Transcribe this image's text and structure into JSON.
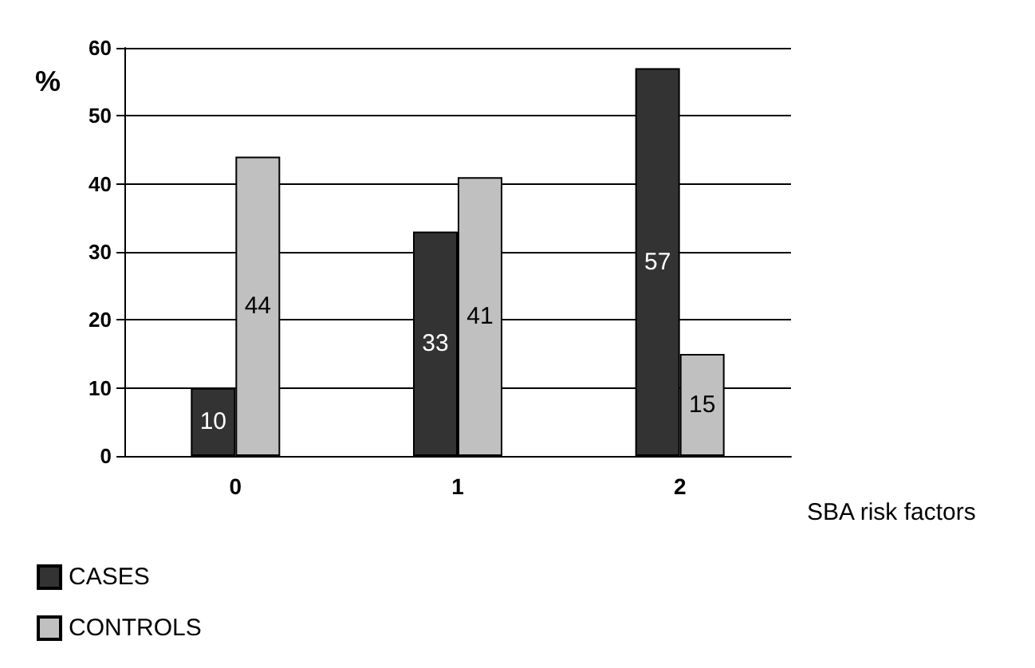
{
  "chart_data": {
    "type": "bar",
    "ylabel": "%",
    "xlabel": "SBA risk factors",
    "categories": [
      "0",
      "1",
      "2"
    ],
    "series": [
      {
        "name": "CASES",
        "color": "#333333",
        "values": [
          10,
          33,
          57
        ]
      },
      {
        "name": "CONTROLS",
        "color": "#c0c0c0",
        "values": [
          44,
          41,
          15
        ]
      }
    ],
    "ylim": [
      0,
      60
    ],
    "yticks": [
      0,
      10,
      20,
      30,
      40,
      50,
      60
    ],
    "grid": "y",
    "legend": "bottom left",
    "data_labels": true
  }
}
